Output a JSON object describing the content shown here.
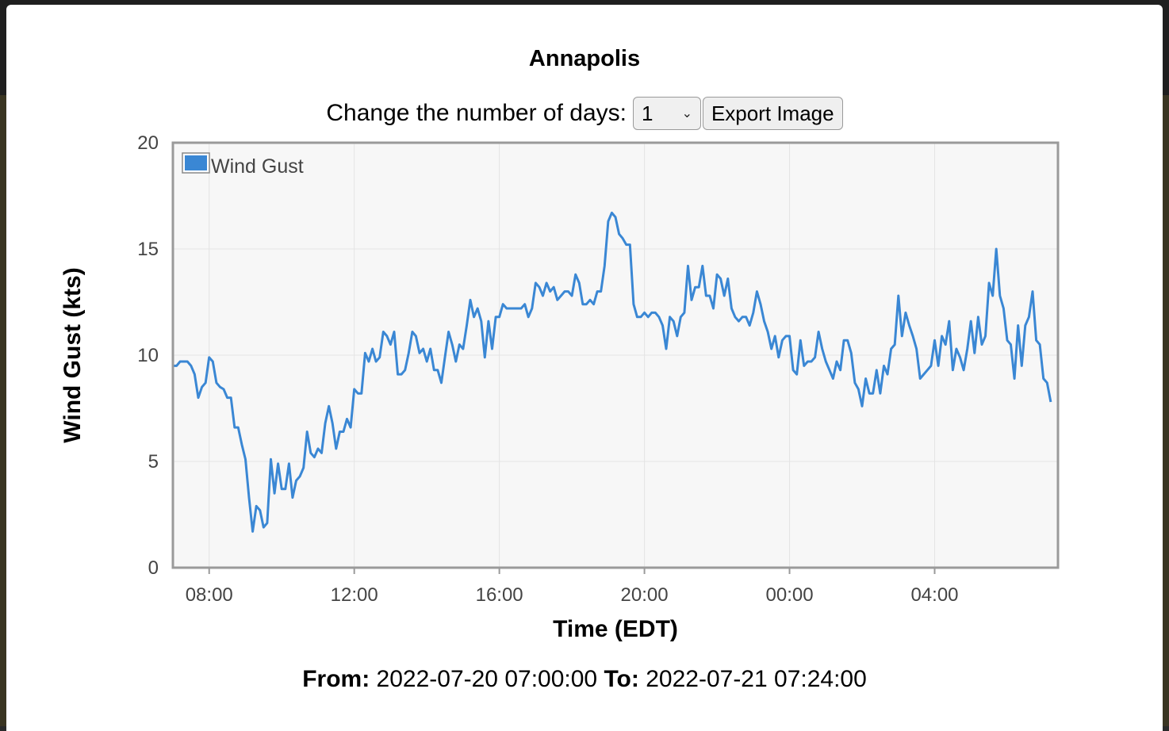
{
  "modal": {
    "title": "Annapolis",
    "controls": {
      "days_label": "Change the number of days:",
      "days_value": "1",
      "export_label": "Export Image"
    },
    "range": {
      "from_label": "From:",
      "from_value": "2022-07-20 07:00:00",
      "to_label": "To:",
      "to_value": "2022-07-21 07:24:00"
    }
  },
  "chart_data": {
    "type": "line",
    "xlabel": "Time (EDT)",
    "ylabel": "Wind Gust (kts)",
    "ylim": [
      0,
      20
    ],
    "yticks": [
      0,
      5,
      10,
      15,
      20
    ],
    "xlim": [
      "2022-07-20 07:00",
      "2022-07-21 07:24"
    ],
    "xticks": [
      {
        "t": "2022-07-20 08:00",
        "label": "08:00"
      },
      {
        "t": "2022-07-20 12:00",
        "label": "12:00"
      },
      {
        "t": "2022-07-20 16:00",
        "label": "16:00"
      },
      {
        "t": "2022-07-20 20:00",
        "label": "20:00"
      },
      {
        "t": "2022-07-21 00:00",
        "label": "00:00"
      },
      {
        "t": "2022-07-21 04:00",
        "label": "04:00"
      }
    ],
    "grid": true,
    "legend": "top-left",
    "series": [
      {
        "name": "Wind Gust",
        "color": "#3a87d4",
        "points": [
          [
            "2022-07-20 07:00",
            9.5
          ],
          [
            "2022-07-20 07:06",
            9.5
          ],
          [
            "2022-07-20 07:12",
            9.7
          ],
          [
            "2022-07-20 07:24",
            9.7
          ],
          [
            "2022-07-20 07:30",
            9.5
          ],
          [
            "2022-07-20 07:36",
            9.1
          ],
          [
            "2022-07-20 07:42",
            8.0
          ],
          [
            "2022-07-20 07:48",
            8.5
          ],
          [
            "2022-07-20 07:54",
            8.7
          ],
          [
            "2022-07-20 08:00",
            9.9
          ],
          [
            "2022-07-20 08:06",
            9.7
          ],
          [
            "2022-07-20 08:12",
            8.7
          ],
          [
            "2022-07-20 08:18",
            8.5
          ],
          [
            "2022-07-20 08:24",
            8.4
          ],
          [
            "2022-07-20 08:30",
            8.0
          ],
          [
            "2022-07-20 08:36",
            8.0
          ],
          [
            "2022-07-20 08:42",
            6.6
          ],
          [
            "2022-07-20 08:48",
            6.6
          ],
          [
            "2022-07-20 08:54",
            5.8
          ],
          [
            "2022-07-20 09:00",
            5.1
          ],
          [
            "2022-07-20 09:06",
            3.3
          ],
          [
            "2022-07-20 09:12",
            1.7
          ],
          [
            "2022-07-20 09:18",
            2.9
          ],
          [
            "2022-07-20 09:24",
            2.7
          ],
          [
            "2022-07-20 09:30",
            1.9
          ],
          [
            "2022-07-20 09:36",
            2.1
          ],
          [
            "2022-07-20 09:42",
            5.1
          ],
          [
            "2022-07-20 09:48",
            3.5
          ],
          [
            "2022-07-20 09:54",
            4.9
          ],
          [
            "2022-07-20 10:00",
            3.7
          ],
          [
            "2022-07-20 10:06",
            3.7
          ],
          [
            "2022-07-20 10:12",
            4.9
          ],
          [
            "2022-07-20 10:18",
            3.3
          ],
          [
            "2022-07-20 10:24",
            4.1
          ],
          [
            "2022-07-20 10:30",
            4.3
          ],
          [
            "2022-07-20 10:36",
            4.7
          ],
          [
            "2022-07-20 10:42",
            6.4
          ],
          [
            "2022-07-20 10:48",
            5.4
          ],
          [
            "2022-07-20 10:54",
            5.2
          ],
          [
            "2022-07-20 11:00",
            5.6
          ],
          [
            "2022-07-20 11:06",
            5.4
          ],
          [
            "2022-07-20 11:12",
            6.8
          ],
          [
            "2022-07-20 11:18",
            7.6
          ],
          [
            "2022-07-20 11:24",
            6.8
          ],
          [
            "2022-07-20 11:30",
            5.6
          ],
          [
            "2022-07-20 11:36",
            6.4
          ],
          [
            "2022-07-20 11:42",
            6.4
          ],
          [
            "2022-07-20 11:48",
            7.0
          ],
          [
            "2022-07-20 11:54",
            6.6
          ],
          [
            "2022-07-20 12:00",
            8.4
          ],
          [
            "2022-07-20 12:06",
            8.2
          ],
          [
            "2022-07-20 12:12",
            8.2
          ],
          [
            "2022-07-20 12:18",
            10.1
          ],
          [
            "2022-07-20 12:24",
            9.7
          ],
          [
            "2022-07-20 12:30",
            10.3
          ],
          [
            "2022-07-20 12:36",
            9.7
          ],
          [
            "2022-07-20 12:42",
            9.9
          ],
          [
            "2022-07-20 12:48",
            11.1
          ],
          [
            "2022-07-20 12:54",
            10.9
          ],
          [
            "2022-07-20 13:00",
            10.5
          ],
          [
            "2022-07-20 13:06",
            11.1
          ],
          [
            "2022-07-20 13:12",
            9.1
          ],
          [
            "2022-07-20 13:18",
            9.1
          ],
          [
            "2022-07-20 13:24",
            9.3
          ],
          [
            "2022-07-20 13:30",
            10.1
          ],
          [
            "2022-07-20 13:36",
            11.1
          ],
          [
            "2022-07-20 13:42",
            10.9
          ],
          [
            "2022-07-20 13:48",
            10.1
          ],
          [
            "2022-07-20 13:54",
            10.3
          ],
          [
            "2022-07-20 14:00",
            9.7
          ],
          [
            "2022-07-20 14:06",
            10.3
          ],
          [
            "2022-07-20 14:12",
            9.3
          ],
          [
            "2022-07-20 14:18",
            9.3
          ],
          [
            "2022-07-20 14:24",
            8.7
          ],
          [
            "2022-07-20 14:30",
            9.9
          ],
          [
            "2022-07-20 14:36",
            11.1
          ],
          [
            "2022-07-20 14:42",
            10.5
          ],
          [
            "2022-07-20 14:48",
            9.7
          ],
          [
            "2022-07-20 14:54",
            10.5
          ],
          [
            "2022-07-20 15:00",
            10.3
          ],
          [
            "2022-07-20 15:06",
            11.4
          ],
          [
            "2022-07-20 15:12",
            12.6
          ],
          [
            "2022-07-20 15:18",
            11.8
          ],
          [
            "2022-07-20 15:24",
            12.2
          ],
          [
            "2022-07-20 15:30",
            11.6
          ],
          [
            "2022-07-20 15:36",
            9.9
          ],
          [
            "2022-07-20 15:42",
            11.6
          ],
          [
            "2022-07-20 15:48",
            10.3
          ],
          [
            "2022-07-20 15:54",
            11.8
          ],
          [
            "2022-07-20 16:00",
            11.8
          ],
          [
            "2022-07-20 16:06",
            12.4
          ],
          [
            "2022-07-20 16:12",
            12.2
          ],
          [
            "2022-07-20 16:18",
            12.2
          ],
          [
            "2022-07-20 16:24",
            12.2
          ],
          [
            "2022-07-20 16:30",
            12.2
          ],
          [
            "2022-07-20 16:36",
            12.2
          ],
          [
            "2022-07-20 16:42",
            12.4
          ],
          [
            "2022-07-20 16:48",
            11.8
          ],
          [
            "2022-07-20 16:54",
            12.2
          ],
          [
            "2022-07-20 17:00",
            13.4
          ],
          [
            "2022-07-20 17:06",
            13.2
          ],
          [
            "2022-07-20 17:12",
            12.8
          ],
          [
            "2022-07-20 17:18",
            13.4
          ],
          [
            "2022-07-20 17:24",
            13.0
          ],
          [
            "2022-07-20 17:30",
            13.2
          ],
          [
            "2022-07-20 17:36",
            12.6
          ],
          [
            "2022-07-20 17:42",
            12.8
          ],
          [
            "2022-07-20 17:48",
            13.0
          ],
          [
            "2022-07-20 17:54",
            13.0
          ],
          [
            "2022-07-20 18:00",
            12.8
          ],
          [
            "2022-07-20 18:06",
            13.8
          ],
          [
            "2022-07-20 18:12",
            13.4
          ],
          [
            "2022-07-20 18:18",
            12.4
          ],
          [
            "2022-07-20 18:24",
            12.4
          ],
          [
            "2022-07-20 18:30",
            12.6
          ],
          [
            "2022-07-20 18:36",
            12.4
          ],
          [
            "2022-07-20 18:42",
            13.0
          ],
          [
            "2022-07-20 18:48",
            13.0
          ],
          [
            "2022-07-20 18:54",
            14.2
          ],
          [
            "2022-07-20 19:00",
            16.3
          ],
          [
            "2022-07-20 19:06",
            16.7
          ],
          [
            "2022-07-20 19:12",
            16.5
          ],
          [
            "2022-07-20 19:18",
            15.7
          ],
          [
            "2022-07-20 19:24",
            15.5
          ],
          [
            "2022-07-20 19:30",
            15.2
          ],
          [
            "2022-07-20 19:36",
            15.2
          ],
          [
            "2022-07-20 19:42",
            12.4
          ],
          [
            "2022-07-20 19:48",
            11.8
          ],
          [
            "2022-07-20 19:54",
            11.8
          ],
          [
            "2022-07-20 20:00",
            12.0
          ],
          [
            "2022-07-20 20:06",
            11.8
          ],
          [
            "2022-07-20 20:12",
            12.0
          ],
          [
            "2022-07-20 20:18",
            12.0
          ],
          [
            "2022-07-20 20:24",
            11.8
          ],
          [
            "2022-07-20 20:30",
            11.4
          ],
          [
            "2022-07-20 20:36",
            10.3
          ],
          [
            "2022-07-20 20:42",
            11.8
          ],
          [
            "2022-07-20 20:48",
            11.6
          ],
          [
            "2022-07-20 20:54",
            10.9
          ],
          [
            "2022-07-20 21:00",
            11.8
          ],
          [
            "2022-07-20 21:06",
            12.0
          ],
          [
            "2022-07-20 21:12",
            14.2
          ],
          [
            "2022-07-20 21:18",
            12.6
          ],
          [
            "2022-07-20 21:24",
            13.2
          ],
          [
            "2022-07-20 21:30",
            13.2
          ],
          [
            "2022-07-20 21:36",
            14.2
          ],
          [
            "2022-07-20 21:42",
            12.8
          ],
          [
            "2022-07-20 21:48",
            12.8
          ],
          [
            "2022-07-20 21:54",
            12.2
          ],
          [
            "2022-07-20 22:00",
            13.8
          ],
          [
            "2022-07-20 22:06",
            13.6
          ],
          [
            "2022-07-20 22:12",
            12.8
          ],
          [
            "2022-07-20 22:18",
            13.6
          ],
          [
            "2022-07-20 22:24",
            12.2
          ],
          [
            "2022-07-20 22:30",
            11.8
          ],
          [
            "2022-07-20 22:36",
            11.6
          ],
          [
            "2022-07-20 22:42",
            11.8
          ],
          [
            "2022-07-20 22:48",
            11.8
          ],
          [
            "2022-07-20 22:54",
            11.4
          ],
          [
            "2022-07-20 23:00",
            12.0
          ],
          [
            "2022-07-20 23:06",
            13.0
          ],
          [
            "2022-07-20 23:12",
            12.4
          ],
          [
            "2022-07-20 23:18",
            11.6
          ],
          [
            "2022-07-20 23:24",
            11.1
          ],
          [
            "2022-07-20 23:30",
            10.3
          ],
          [
            "2022-07-20 23:36",
            10.9
          ],
          [
            "2022-07-20 23:42",
            9.9
          ],
          [
            "2022-07-20 23:48",
            10.7
          ],
          [
            "2022-07-20 23:54",
            10.9
          ],
          [
            "2022-07-21 00:00",
            10.9
          ],
          [
            "2022-07-21 00:06",
            9.3
          ],
          [
            "2022-07-21 00:12",
            9.1
          ],
          [
            "2022-07-21 00:18",
            10.7
          ],
          [
            "2022-07-21 00:24",
            9.5
          ],
          [
            "2022-07-21 00:30",
            9.7
          ],
          [
            "2022-07-21 00:36",
            9.7
          ],
          [
            "2022-07-21 00:42",
            9.9
          ],
          [
            "2022-07-21 00:48",
            11.1
          ],
          [
            "2022-07-21 00:54",
            10.3
          ],
          [
            "2022-07-21 01:00",
            9.7
          ],
          [
            "2022-07-21 01:06",
            9.3
          ],
          [
            "2022-07-21 01:12",
            8.9
          ],
          [
            "2022-07-21 01:18",
            9.7
          ],
          [
            "2022-07-21 01:24",
            9.3
          ],
          [
            "2022-07-21 01:30",
            10.7
          ],
          [
            "2022-07-21 01:36",
            10.7
          ],
          [
            "2022-07-21 01:42",
            10.1
          ],
          [
            "2022-07-21 01:48",
            8.7
          ],
          [
            "2022-07-21 01:54",
            8.4
          ],
          [
            "2022-07-21 02:00",
            7.6
          ],
          [
            "2022-07-21 02:06",
            8.9
          ],
          [
            "2022-07-21 02:12",
            8.2
          ],
          [
            "2022-07-21 02:18",
            8.2
          ],
          [
            "2022-07-21 02:24",
            9.3
          ],
          [
            "2022-07-21 02:30",
            8.2
          ],
          [
            "2022-07-21 02:36",
            9.5
          ],
          [
            "2022-07-21 02:42",
            9.1
          ],
          [
            "2022-07-21 02:48",
            10.3
          ],
          [
            "2022-07-21 02:54",
            10.5
          ],
          [
            "2022-07-21 03:00",
            12.8
          ],
          [
            "2022-07-21 03:06",
            10.9
          ],
          [
            "2022-07-21 03:12",
            12.0
          ],
          [
            "2022-07-21 03:18",
            11.4
          ],
          [
            "2022-07-21 03:24",
            10.9
          ],
          [
            "2022-07-21 03:30",
            10.3
          ],
          [
            "2022-07-21 03:36",
            8.9
          ],
          [
            "2022-07-21 03:42",
            9.1
          ],
          [
            "2022-07-21 03:48",
            9.3
          ],
          [
            "2022-07-21 03:54",
            9.5
          ],
          [
            "2022-07-21 04:00",
            10.7
          ],
          [
            "2022-07-21 04:06",
            9.5
          ],
          [
            "2022-07-21 04:12",
            10.9
          ],
          [
            "2022-07-21 04:18",
            10.5
          ],
          [
            "2022-07-21 04:24",
            11.6
          ],
          [
            "2022-07-21 04:30",
            9.3
          ],
          [
            "2022-07-21 04:36",
            10.3
          ],
          [
            "2022-07-21 04:42",
            9.9
          ],
          [
            "2022-07-21 04:48",
            9.3
          ],
          [
            "2022-07-21 04:54",
            10.3
          ],
          [
            "2022-07-21 05:00",
            11.6
          ],
          [
            "2022-07-21 05:06",
            10.1
          ],
          [
            "2022-07-21 05:12",
            11.8
          ],
          [
            "2022-07-21 05:18",
            10.5
          ],
          [
            "2022-07-21 05:24",
            10.9
          ],
          [
            "2022-07-21 05:30",
            13.4
          ],
          [
            "2022-07-21 05:36",
            12.8
          ],
          [
            "2022-07-21 05:42",
            15.0
          ],
          [
            "2022-07-21 05:48",
            12.8
          ],
          [
            "2022-07-21 05:54",
            12.2
          ],
          [
            "2022-07-21 06:00",
            10.7
          ],
          [
            "2022-07-21 06:06",
            10.5
          ],
          [
            "2022-07-21 06:12",
            8.9
          ],
          [
            "2022-07-21 06:18",
            11.4
          ],
          [
            "2022-07-21 06:24",
            9.5
          ],
          [
            "2022-07-21 06:30",
            11.4
          ],
          [
            "2022-07-21 06:36",
            11.8
          ],
          [
            "2022-07-21 06:42",
            13.0
          ],
          [
            "2022-07-21 06:48",
            10.7
          ],
          [
            "2022-07-21 06:54",
            10.5
          ],
          [
            "2022-07-21 07:00",
            8.9
          ],
          [
            "2022-07-21 07:06",
            8.7
          ],
          [
            "2022-07-21 07:12",
            7.8
          ]
        ]
      }
    ]
  }
}
